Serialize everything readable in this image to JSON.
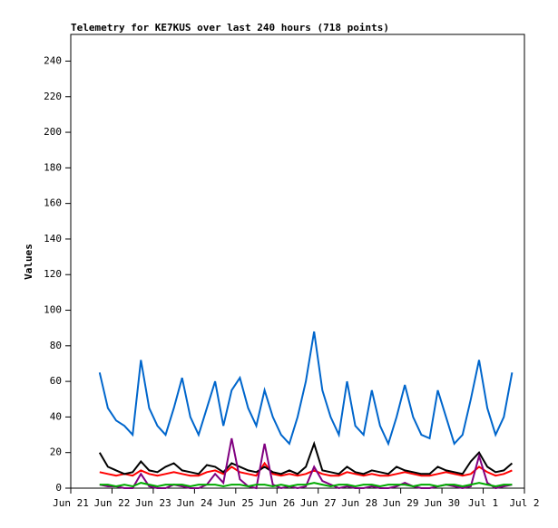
{
  "chart_data": {
    "type": "line",
    "title": "Telemetry for KE7KUS over last 240 hours (718 points)",
    "y_label": "Values",
    "xlim": [
      0,
      11
    ],
    "ylim": [
      0,
      255
    ],
    "xticks": [
      {
        "value": 0,
        "label": "Jun 21"
      },
      {
        "value": 1,
        "label": "Jun 22"
      },
      {
        "value": 2,
        "label": "Jun 23"
      },
      {
        "value": 3,
        "label": "Jun 24"
      },
      {
        "value": 4,
        "label": "Jun 25"
      },
      {
        "value": 5,
        "label": "Jun 26"
      },
      {
        "value": 6,
        "label": "Jun 27"
      },
      {
        "value": 7,
        "label": "Jun 28"
      },
      {
        "value": 8,
        "label": "Jun 29"
      },
      {
        "value": 9,
        "label": "Jun 30"
      },
      {
        "value": 10,
        "label": "Jul 1"
      },
      {
        "value": 11,
        "label": "Jul 2"
      }
    ],
    "yticks": [
      0,
      20,
      40,
      60,
      80,
      100,
      120,
      140,
      160,
      180,
      200,
      220,
      240
    ],
    "grid": false,
    "x": [
      0.7,
      0.9,
      1.1,
      1.3,
      1.5,
      1.7,
      1.9,
      2.1,
      2.3,
      2.5,
      2.7,
      2.9,
      3.1,
      3.3,
      3.5,
      3.7,
      3.9,
      4.1,
      4.3,
      4.5,
      4.7,
      4.9,
      5.1,
      5.3,
      5.5,
      5.7,
      5.9,
      6.1,
      6.3,
      6.5,
      6.7,
      6.9,
      7.1,
      7.3,
      7.5,
      7.7,
      7.9,
      8.1,
      8.3,
      8.5,
      8.7,
      8.9,
      9.1,
      9.3,
      9.5,
      9.7,
      9.9,
      10.1,
      10.3,
      10.5,
      10.7
    ],
    "series": [
      {
        "color": "#0066cc",
        "values": [
          65,
          45,
          38,
          35,
          30,
          72,
          45,
          35,
          30,
          45,
          62,
          40,
          30,
          45,
          60,
          35,
          55,
          62,
          45,
          35,
          55,
          40,
          30,
          25,
          40,
          60,
          88,
          55,
          40,
          30,
          60,
          35,
          30,
          55,
          35,
          25,
          40,
          58,
          40,
          30,
          28,
          55,
          40,
          25,
          30,
          50,
          72,
          45,
          30,
          40,
          65
        ]
      },
      {
        "color": "#ff0000",
        "values": [
          9,
          8,
          7,
          8,
          7,
          10,
          8,
          7,
          8,
          9,
          8,
          7,
          7,
          9,
          10,
          8,
          12,
          9,
          8,
          7,
          14,
          8,
          7,
          8,
          7,
          8,
          10,
          8,
          7,
          7,
          9,
          8,
          7,
          8,
          7,
          7,
          8,
          9,
          8,
          7,
          7,
          8,
          9,
          8,
          7,
          8,
          12,
          9,
          7,
          8,
          10
        ]
      },
      {
        "color": "#000000",
        "values": [
          20,
          12,
          10,
          8,
          9,
          15,
          10,
          9,
          12,
          14,
          10,
          9,
          8,
          13,
          12,
          9,
          14,
          12,
          10,
          9,
          12,
          9,
          8,
          10,
          8,
          12,
          25,
          10,
          9,
          8,
          12,
          9,
          8,
          10,
          9,
          8,
          12,
          10,
          9,
          8,
          8,
          12,
          10,
          9,
          8,
          15,
          20,
          12,
          9,
          10,
          14
        ]
      },
      {
        "color": "#800080",
        "values": [
          2,
          1,
          1,
          0,
          0,
          8,
          1,
          0,
          0,
          2,
          1,
          0,
          0,
          2,
          8,
          3,
          28,
          5,
          1,
          0,
          25,
          2,
          0,
          1,
          0,
          1,
          12,
          4,
          2,
          0,
          1,
          0,
          0,
          1,
          0,
          0,
          1,
          3,
          1,
          0,
          0,
          1,
          2,
          1,
          0,
          1,
          18,
          3,
          0,
          1,
          2
        ]
      },
      {
        "color": "#00aa00",
        "values": [
          2,
          2,
          1,
          2,
          1,
          3,
          2,
          1,
          2,
          2,
          2,
          1,
          2,
          2,
          2,
          1,
          2,
          2,
          1,
          2,
          2,
          1,
          2,
          1,
          2,
          2,
          3,
          2,
          1,
          2,
          2,
          1,
          2,
          2,
          1,
          2,
          2,
          2,
          1,
          2,
          2,
          1,
          2,
          2,
          1,
          2,
          3,
          2,
          1,
          2,
          2
        ]
      }
    ]
  }
}
